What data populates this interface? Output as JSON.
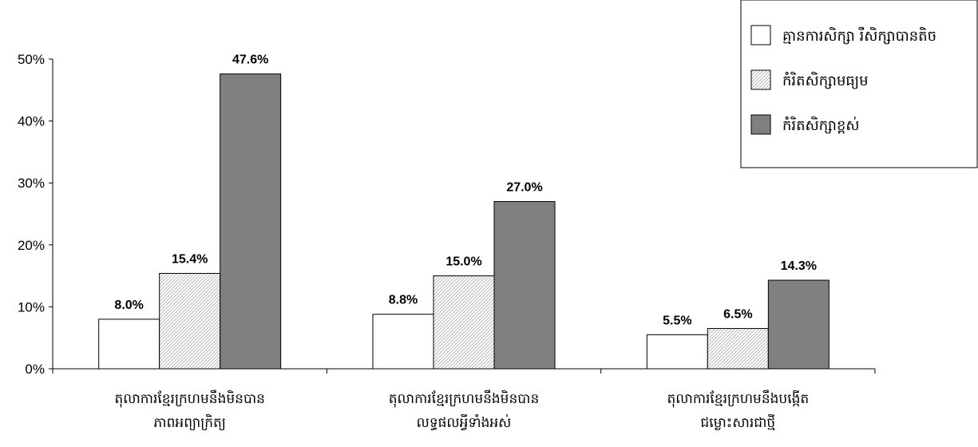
{
  "chart_data": {
    "type": "bar",
    "categories": [
      [
        "តុលាការខ្មែរក្រហមនឹងមិនបាន",
        "ភាពអព្យាក្រិត្យ"
      ],
      [
        "តុលាការខ្មែរក្រហមនឹងមិនបាន",
        "លទ្ធផលអ្វីទាំងអស់"
      ],
      [
        "តុលាការខ្មែរក្រហមនឹងបង្កើត",
        "ជម្លោះសារជាថ្មី"
      ]
    ],
    "series": [
      {
        "name": "គ្មានការសិក្សា រឺសិក្សាបានតិច",
        "values": [
          8.0,
          8.8,
          5.5
        ],
        "labels": [
          "8.0%",
          "8.8%",
          "5.5%"
        ],
        "color": "#ffffff",
        "pattern": "none"
      },
      {
        "name": "កំរិតសិក្សាមធ្យម",
        "values": [
          15.4,
          15.0,
          6.5
        ],
        "labels": [
          "15.4%",
          "15.0%",
          "6.5%"
        ],
        "color": "#e0e0e0",
        "pattern": "hatch"
      },
      {
        "name": "កំរិតសិក្សាខ្ពស់",
        "values": [
          47.6,
          27.0,
          14.3
        ],
        "labels": [
          "47.6%",
          "27.0%",
          "14.3%"
        ],
        "color": "#808080",
        "pattern": "none"
      }
    ],
    "yticks": [
      "0%",
      "10%",
      "20%",
      "30%",
      "40%",
      "50%"
    ],
    "ylim": [
      0,
      50
    ],
    "legend_position": "top-right",
    "grid": false
  }
}
